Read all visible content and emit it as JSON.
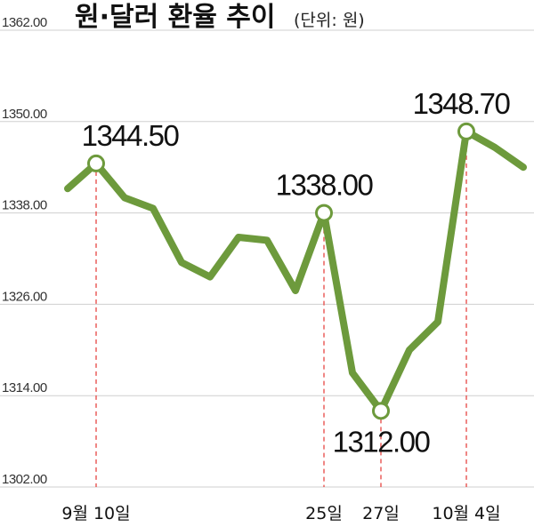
{
  "chart_data": {
    "type": "line",
    "title": "원·달러 환율 추이",
    "unit": "(단위: 원)",
    "xlabel": "",
    "ylabel": "",
    "ylim": [
      1302,
      1362
    ],
    "yticks": [
      1302,
      1314,
      1326,
      1338,
      1350,
      1362
    ],
    "ytick_labels": [
      "1302.00",
      "1314.00",
      "1326.00",
      "1338.00",
      "1350.00",
      "1362.00"
    ],
    "grid": true,
    "series_color": "#6d9a3c",
    "highlight_color": "#e8524f",
    "values": [
      1341.2,
      1344.5,
      1340.0,
      1338.6,
      1331.5,
      1329.6,
      1334.8,
      1334.4,
      1327.8,
      1338.0,
      1317.0,
      1312.0,
      1320.0,
      1323.7,
      1348.7,
      1346.6,
      1344.0
    ],
    "x_labels": [
      {
        "index": 1,
        "label": "9월 10일"
      },
      {
        "index": 9,
        "label": "25일"
      },
      {
        "index": 11,
        "label": "27일"
      },
      {
        "index": 14,
        "label": "10월 4일"
      }
    ],
    "annotations": [
      {
        "index": 1,
        "label": "1344.50"
      },
      {
        "index": 9,
        "label": "1338.00"
      },
      {
        "index": 11,
        "label": "1312.00"
      },
      {
        "index": 14,
        "label": "1348.70"
      }
    ]
  }
}
